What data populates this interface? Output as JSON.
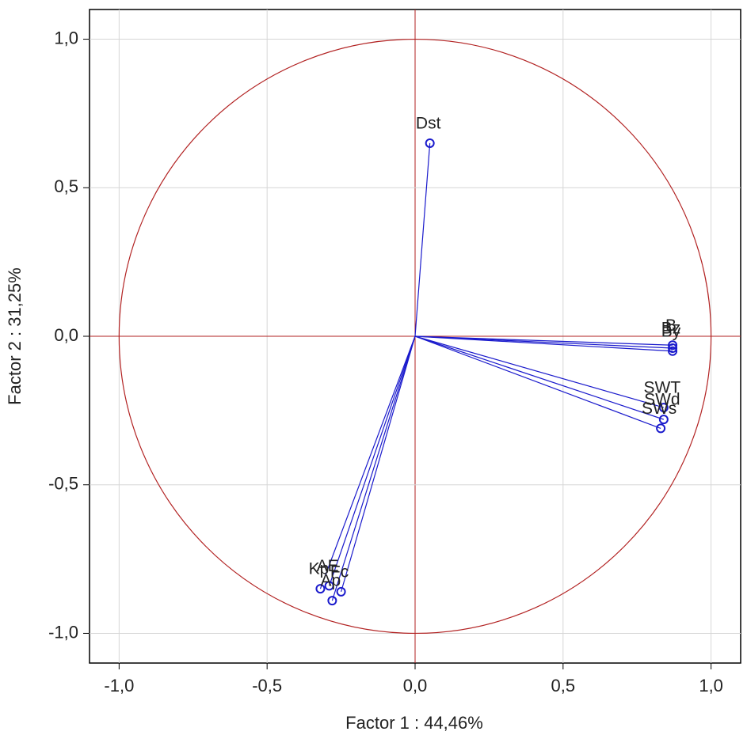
{
  "chart_data": {
    "type": "scatter",
    "xlabel": "Factor 1 : 44,46%",
    "ylabel": "Factor 2 : 31,25%",
    "labels": [
      "Dst",
      "B",
      "Bz",
      "By",
      "SWT",
      "SWd",
      "SWs",
      "Kp",
      "AE",
      "Fc",
      "Ap"
    ],
    "x": [
      0.05,
      0.87,
      0.87,
      0.87,
      0.84,
      0.84,
      0.83,
      -0.32,
      -0.29,
      -0.25,
      -0.28
    ],
    "y": [
      0.65,
      -0.03,
      -0.04,
      -0.05,
      -0.24,
      -0.28,
      -0.31,
      -0.85,
      -0.84,
      -0.86,
      -0.89
    ],
    "color": "#1a1acc",
    "circle_color": "#b22222",
    "circle_radius": 1,
    "xlim": [
      -1.1,
      1.1
    ],
    "ylim": [
      -1.1,
      1.1
    ],
    "xticks": [
      {
        "value": -1,
        "label": "-1,0"
      },
      {
        "value": -0.5,
        "label": "-0,5"
      },
      {
        "value": 0,
        "label": "0,0"
      },
      {
        "value": 0.5,
        "label": "0,5"
      },
      {
        "value": 1,
        "label": "1,0"
      }
    ],
    "yticks": [
      {
        "value": -1,
        "label": "-1,0"
      },
      {
        "value": -0.5,
        "label": "-0,5"
      },
      {
        "value": 0,
        "label": "0,0"
      },
      {
        "value": 0.5,
        "label": "0,5"
      },
      {
        "value": 1,
        "label": "1,0"
      }
    ],
    "grid": true
  }
}
